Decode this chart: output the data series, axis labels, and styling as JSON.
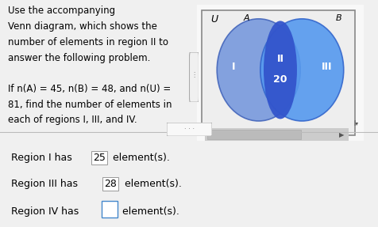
{
  "bg_color": "#f0f0f0",
  "venn_bg": "#e0e0e0",
  "circle_A_color": "#7799dd",
  "circle_B_color": "#5599ee",
  "intersection_color": "#3355cc",
  "label_U": "U",
  "label_A": "A",
  "label_B": "B",
  "region_I_label": "I",
  "region_II_label": "II",
  "region_II_value": "20",
  "region_III_label": "III",
  "left_text_line1": "Use the accompanying",
  "left_text_line2": "Venn diagram, which shows the",
  "left_text_line3": "number of elements in region II to",
  "left_text_line4": "answer the following problem.",
  "left_text_line5": "If n(A) = 45, n(B) = 48, and n(U) =",
  "left_text_line6": "81, find the number of elements in",
  "left_text_line7": "each of regions I, III, and IV.",
  "font_size_main": 8.5,
  "font_size_venn_label": 9,
  "font_size_bottom": 9,
  "r1_text": "Region I has  25  element(s).",
  "r3_text": "Region III has  28  element(s).",
  "r4_prefix": "Region IV has ",
  "r4_suffix": " element(s)."
}
